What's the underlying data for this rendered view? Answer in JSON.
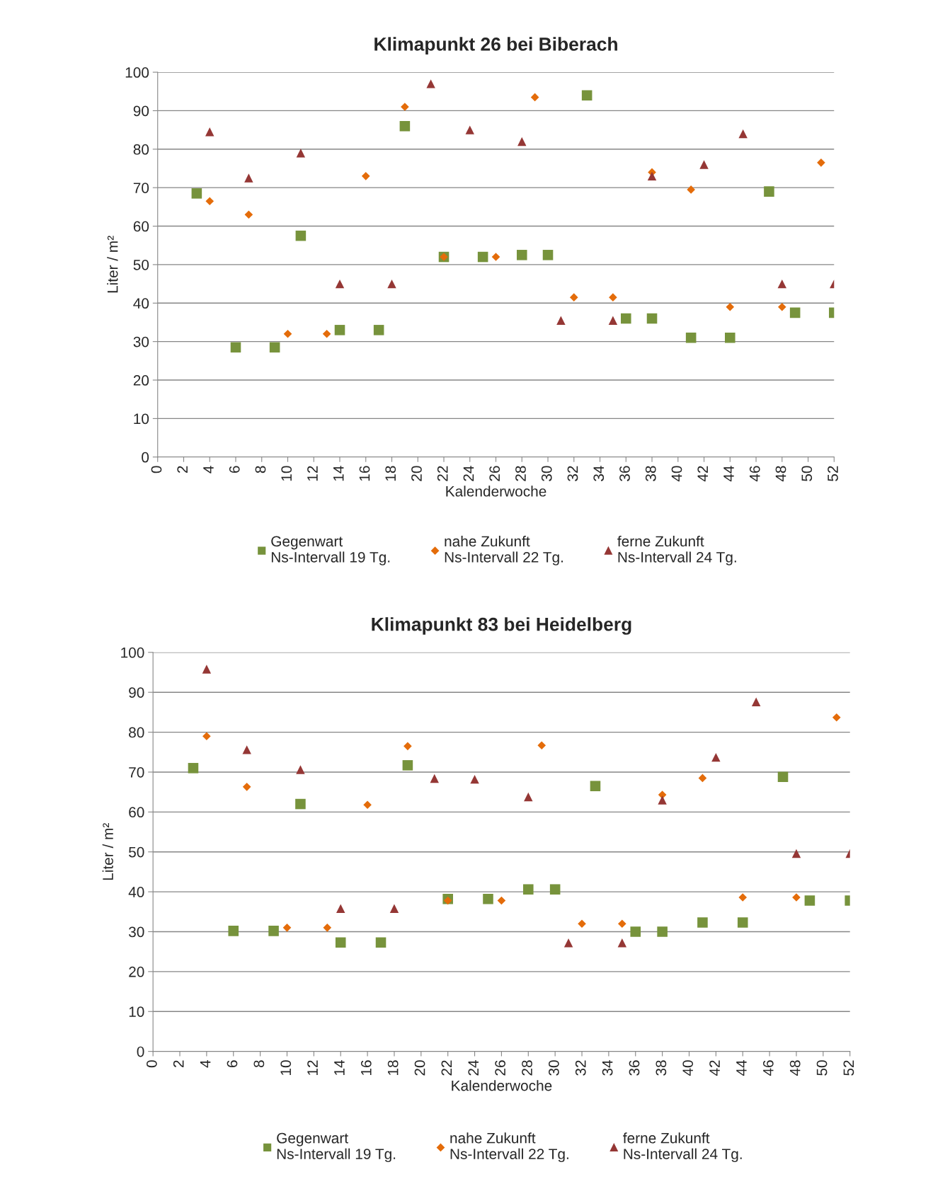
{
  "chart_data": [
    {
      "type": "scatter",
      "title": "Klimapunkt 26 bei Biberach",
      "xlabel": "Kalenderwoche",
      "ylabel": "Liter / m²",
      "xlim": [
        0,
        52
      ],
      "xticks": [
        0,
        2,
        4,
        6,
        8,
        10,
        12,
        14,
        16,
        18,
        20,
        22,
        24,
        26,
        28,
        30,
        32,
        34,
        36,
        38,
        40,
        42,
        44,
        46,
        48,
        50,
        52
      ],
      "ylim": [
        0,
        100
      ],
      "yticks": [
        0,
        10,
        20,
        30,
        40,
        50,
        60,
        70,
        80,
        90,
        100
      ],
      "grid": "y",
      "legend": "bottom",
      "series": [
        {
          "name": "Gegenwart\nNs-Intervall 19 Tg.",
          "color": "#77933c",
          "marker": "square",
          "x": [
            3,
            6,
            9,
            11,
            14,
            17,
            19,
            22,
            25,
            28,
            30,
            33,
            36,
            38,
            41,
            44,
            47,
            49,
            52
          ],
          "values": [
            68.5,
            28.5,
            28.5,
            57.5,
            33,
            33,
            86,
            52,
            52,
            52.5,
            52.5,
            94,
            36,
            36,
            31,
            31,
            69,
            37.5,
            37.5
          ]
        },
        {
          "name": "nahe Zukunft\nNs-Intervall 22 Tg.",
          "color": "#e46c0a",
          "marker": "diamond",
          "x": [
            4,
            7,
            10,
            13,
            16,
            19,
            22,
            26,
            29,
            32,
            35,
            38,
            41,
            44,
            48,
            51
          ],
          "values": [
            66.5,
            63,
            32,
            32,
            73,
            91,
            52,
            52,
            93.5,
            41.5,
            41.5,
            74,
            69.5,
            39,
            39,
            76.5
          ]
        },
        {
          "name": "ferne Zukunft\nNs-Intervall 24 Tg.",
          "color": "#953735",
          "marker": "triangle",
          "x": [
            4,
            7,
            11,
            14,
            18,
            21,
            24,
            28,
            31,
            35,
            38,
            42,
            45,
            48,
            52
          ],
          "values": [
            84.5,
            72.5,
            79,
            45,
            45,
            97,
            85,
            82,
            35.5,
            35.5,
            73,
            76,
            84,
            45,
            45
          ]
        }
      ]
    },
    {
      "type": "scatter",
      "title": "Klimapunkt 83 bei Heidelberg",
      "xlabel": "Kalenderwoche",
      "ylabel": "Liter / m²",
      "xlim": [
        0,
        52
      ],
      "xticks": [
        0,
        2,
        4,
        6,
        8,
        10,
        12,
        14,
        16,
        18,
        20,
        22,
        24,
        26,
        28,
        30,
        32,
        34,
        36,
        38,
        40,
        42,
        44,
        46,
        48,
        50,
        52
      ],
      "ylim": [
        0,
        100
      ],
      "yticks": [
        0,
        10,
        20,
        30,
        40,
        50,
        60,
        70,
        80,
        90,
        100
      ],
      "grid": "y",
      "legend": "bottom",
      "series": [
        {
          "name": "Gegenwart\nNs-Intervall 19 Tg.",
          "color": "#77933c",
          "marker": "square",
          "x": [
            3,
            6,
            9,
            11,
            14,
            17,
            19,
            22,
            25,
            28,
            30,
            33,
            36,
            38,
            41,
            44,
            47,
            49,
            52
          ],
          "values": [
            71,
            30.2,
            30.2,
            62,
            27.3,
            27.3,
            71.7,
            38.2,
            38.2,
            40.6,
            40.6,
            66.5,
            30,
            30,
            32.3,
            32.3,
            68.8,
            37.8,
            37.8
          ]
        },
        {
          "name": "nahe Zukunft\nNs-Intervall 22 Tg.",
          "color": "#e46c0a",
          "marker": "diamond",
          "x": [
            4,
            7,
            10,
            13,
            16,
            19,
            22,
            26,
            29,
            32,
            35,
            38,
            41,
            44,
            48,
            51
          ],
          "values": [
            79,
            66.3,
            31,
            31,
            61.8,
            76.5,
            37.8,
            37.8,
            76.7,
            32,
            32,
            64.3,
            68.5,
            38.6,
            38.6,
            83.7
          ]
        },
        {
          "name": "ferne Zukunft\nNs-Intervall 24 Tg.",
          "color": "#953735",
          "marker": "triangle",
          "x": [
            4,
            7,
            11,
            14,
            18,
            21,
            24,
            28,
            31,
            35,
            38,
            42,
            45,
            48,
            52
          ],
          "values": [
            95.8,
            75.6,
            70.6,
            35.8,
            35.8,
            68.4,
            68.2,
            63.8,
            27.2,
            27.2,
            63,
            73.7,
            87.6,
            49.6,
            49.6
          ]
        }
      ]
    }
  ]
}
